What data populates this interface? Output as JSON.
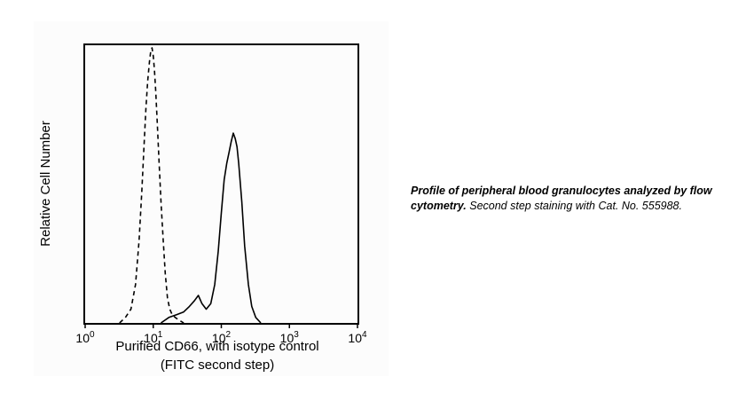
{
  "chart_data": {
    "type": "line",
    "ylabel": "Relative Cell Number",
    "xlabel_line1": "Purified CD66, with isotype control",
    "xlabel_line2": "(FITC second step)",
    "x_scale": "log",
    "xlim": [
      1,
      10000
    ],
    "x_ticks": [
      {
        "value": 1,
        "base": "10",
        "exp": "0"
      },
      {
        "value": 10,
        "base": "10",
        "exp": "1"
      },
      {
        "value": 100,
        "base": "10",
        "exp": "2"
      },
      {
        "value": 1000,
        "base": "10",
        "exp": "3"
      },
      {
        "value": 10000,
        "base": "10",
        "exp": "4"
      }
    ],
    "ylim": [
      0,
      100
    ],
    "grid": false,
    "series": [
      {
        "line_style": "dashed",
        "color": "#000000",
        "x": [
          3.2,
          3.9,
          4.7,
          5.5,
          6.2,
          6.8,
          7.3,
          7.8,
          8.3,
          8.8,
          9.2,
          9.6,
          10.0,
          10.4,
          10.9,
          11.5,
          12.2,
          13.0,
          14.0,
          15.0,
          16.2,
          17.5,
          19.0,
          21.0,
          24.0,
          28.0
        ],
        "y": [
          0,
          2,
          5,
          14,
          30,
          48,
          64,
          78,
          88,
          95,
          99,
          100,
          97,
          92,
          84,
          72,
          58,
          44,
          30,
          18,
          9,
          5,
          3,
          2,
          1,
          0
        ]
      },
      {
        "line_style": "solid",
        "color": "#000000",
        "x": [
          13,
          17,
          22,
          28,
          34,
          40,
          46,
          52,
          60,
          70,
          80,
          90,
          100,
          110,
          120,
          130,
          140,
          150,
          160,
          170,
          180,
          200,
          220,
          250,
          280,
          320,
          380
        ],
        "y": [
          0,
          2,
          3,
          4,
          6,
          8,
          10,
          7,
          5,
          7,
          14,
          26,
          40,
          52,
          58,
          62,
          66,
          69,
          67,
          64,
          58,
          44,
          28,
          14,
          6,
          2,
          0
        ]
      }
    ]
  },
  "caption": {
    "bold": "Profile of peripheral blood granulocytes analyzed by flow cytometry.",
    "plain": " Second step staining with Cat. No. 555988."
  }
}
